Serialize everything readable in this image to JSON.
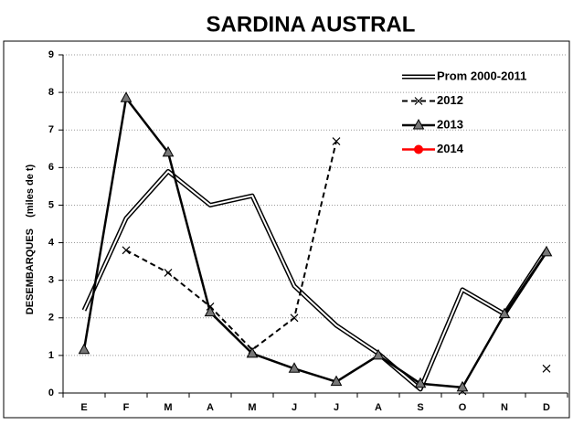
{
  "chart_data": {
    "type": "line",
    "title": "SARDINA AUSTRAL",
    "ylabel": "DESEMBARQUES    (miles de t)",
    "categories": [
      "E",
      "F",
      "M",
      "A",
      "M",
      "J",
      "J",
      "A",
      "S",
      "O",
      "N",
      "D"
    ],
    "series": [
      {
        "name": "Prom 2000-2011",
        "color": "#000000",
        "style": "double",
        "marker": "none",
        "values": [
          2.2,
          4.65,
          5.9,
          5.0,
          5.25,
          2.85,
          1.8,
          1.05,
          0.1,
          2.75,
          2.1,
          3.8
        ]
      },
      {
        "name": "2012",
        "color": "#000000",
        "style": "dashed",
        "marker": "x",
        "values": [
          null,
          3.8,
          3.2,
          2.3,
          1.15,
          2.0,
          6.7,
          null,
          null,
          0.05,
          null,
          0.65
        ]
      },
      {
        "name": "2013",
        "color": "#000000",
        "style": "solid",
        "marker": "triangle",
        "values": [
          1.15,
          7.85,
          6.4,
          2.15,
          1.05,
          0.65,
          0.3,
          1.0,
          0.25,
          0.15,
          2.1,
          3.75
        ]
      },
      {
        "name": "2014",
        "color": "#ff0000",
        "style": "solid",
        "marker": "circle",
        "values": [
          null,
          null,
          null,
          null,
          null,
          null,
          null,
          null,
          null,
          null,
          null,
          null
        ]
      }
    ],
    "ylim": [
      0,
      9
    ],
    "yticks": [
      0,
      1,
      2,
      3,
      4,
      5,
      6,
      7,
      8,
      9
    ],
    "grid": true,
    "legend": "top-right"
  }
}
